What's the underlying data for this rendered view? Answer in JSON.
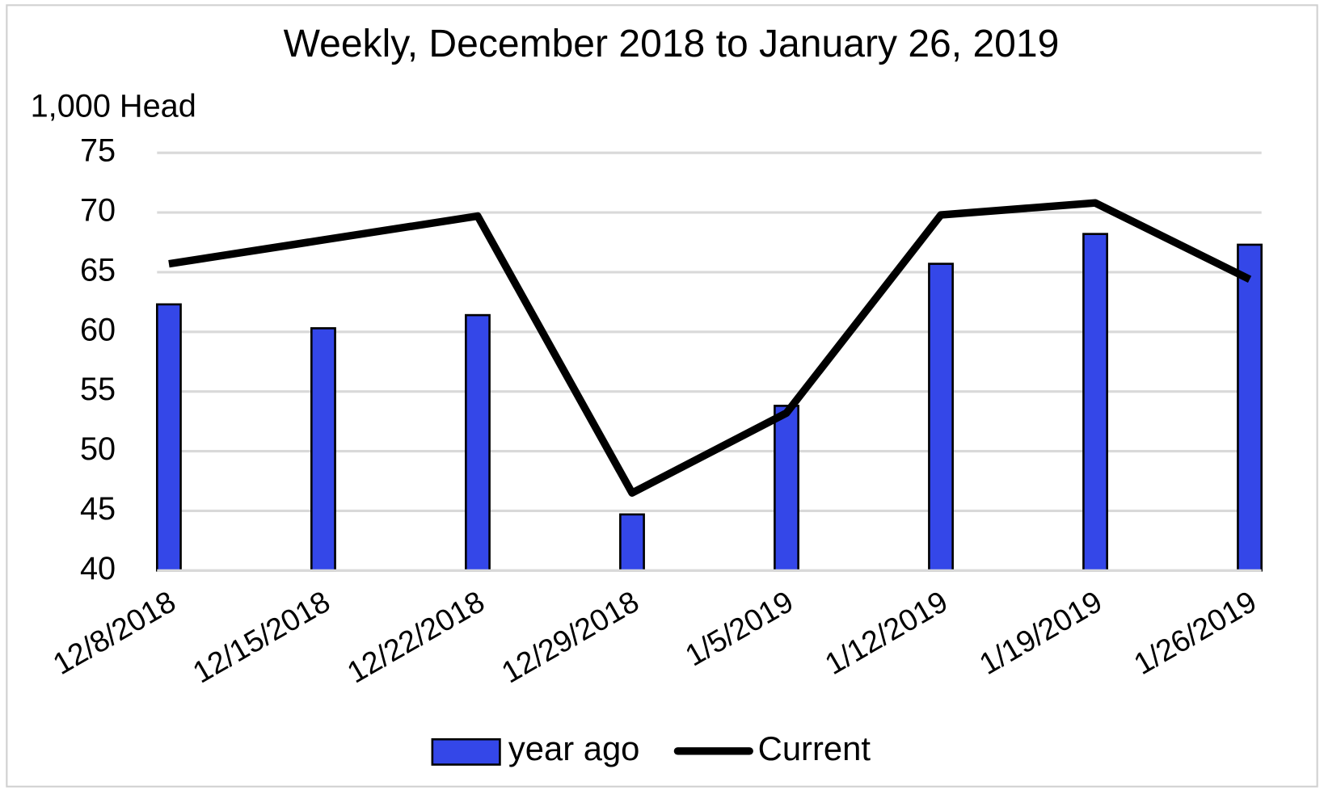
{
  "chart_data": {
    "type": "combo",
    "title": "Weekly, December 2018 to January 26, 2019",
    "y_label": "1,000 Head",
    "categories": [
      "12/8/2018",
      "12/15/2018",
      "12/22/2018",
      "12/29/2018",
      "1/5/2019",
      "1/12/2019",
      "1/19/2019",
      "1/26/2019"
    ],
    "series": [
      {
        "name": "year ago",
        "type": "bar",
        "color": "#3447e8",
        "values": [
          62.3,
          60.3,
          61.4,
          44.7,
          53.8,
          65.7,
          68.2,
          67.3
        ]
      },
      {
        "name": "Current",
        "type": "line",
        "color": "#000000",
        "values": [
          65.7,
          67.7,
          69.7,
          46.5,
          53.2,
          69.8,
          70.8,
          64.4
        ]
      }
    ],
    "ylim": [
      40,
      75
    ],
    "yticks": [
      40,
      45,
      50,
      55,
      60,
      65,
      70,
      75
    ],
    "grid": true,
    "legend": "bottom"
  }
}
